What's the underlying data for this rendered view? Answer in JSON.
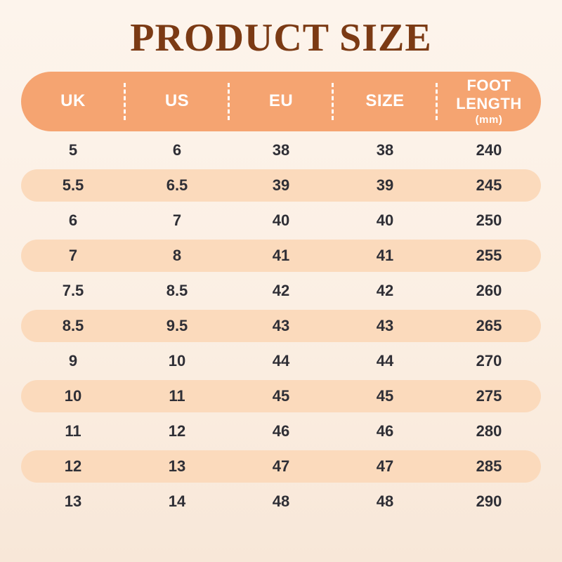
{
  "title": "PRODUCT SIZE",
  "header": {
    "col_uk": "UK",
    "col_us": "US",
    "col_eu": "EU",
    "col_size": "SIZE",
    "col_foot": "FOOT LENGTH",
    "col_foot_unit": "(mm)"
  },
  "chart_data": {
    "type": "table",
    "title": "PRODUCT SIZE",
    "columns": [
      "UK",
      "US",
      "EU",
      "SIZE",
      "FOOT LENGTH (mm)"
    ],
    "rows": [
      [
        "5",
        "6",
        "38",
        "38",
        "240"
      ],
      [
        "5.5",
        "6.5",
        "39",
        "39",
        "245"
      ],
      [
        "6",
        "7",
        "40",
        "40",
        "250"
      ],
      [
        "7",
        "8",
        "41",
        "41",
        "255"
      ],
      [
        "7.5",
        "8.5",
        "42",
        "42",
        "260"
      ],
      [
        "8.5",
        "9.5",
        "43",
        "43",
        "265"
      ],
      [
        "9",
        "10",
        "44",
        "44",
        "270"
      ],
      [
        "10",
        "11",
        "45",
        "45",
        "275"
      ],
      [
        "11",
        "12",
        "46",
        "46",
        "280"
      ],
      [
        "12",
        "13",
        "47",
        "47",
        "285"
      ],
      [
        "13",
        "14",
        "48",
        "48",
        "290"
      ]
    ],
    "layout": {
      "highlighted_rows": "even rows (2nd, 4th, ...) have peach pill background",
      "header_style": "orange rounded bar with white dashed column dividers"
    }
  },
  "colors": {
    "background_top": "#FDF4EC",
    "background_bottom": "#F8E7D8",
    "header_bar": "#F5A471",
    "row_highlight": "#FBDABC",
    "title_text": "#7B3A14",
    "cell_text": "#2F2F36",
    "header_text": "#FFFFFF"
  }
}
